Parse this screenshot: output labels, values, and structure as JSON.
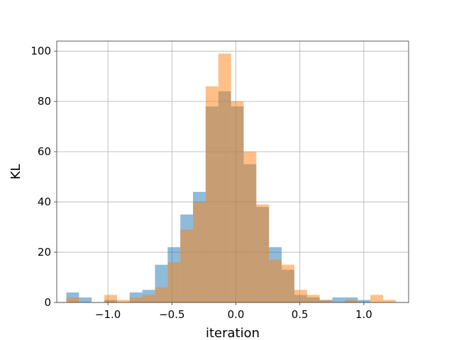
{
  "chart_data": {
    "type": "histogram",
    "xlabel": "iteration",
    "ylabel": "KL",
    "xlim": [
      -1.4,
      1.35
    ],
    "ylim": [
      0,
      104
    ],
    "grid": true,
    "x_ticks": [
      -1.0,
      -0.5,
      0.0,
      0.5,
      1.0
    ],
    "x_tick_labels": [
      "−1.0",
      "−0.5",
      "0.0",
      "0.5",
      "1.0"
    ],
    "y_ticks": [
      0,
      20,
      40,
      60,
      80,
      100
    ],
    "y_tick_labels": [
      "0",
      "20",
      "40",
      "60",
      "80",
      "100"
    ],
    "series": [
      {
        "color": "#1f77b4",
        "opacity": 0.5,
        "bins": [
          {
            "x0": -1.325,
            "x1": -1.226,
            "count": 4
          },
          {
            "x0": -1.226,
            "x1": -1.127,
            "count": 2
          },
          {
            "x0": -1.127,
            "x1": -1.028,
            "count": 0
          },
          {
            "x0": -1.028,
            "x1": -0.929,
            "count": 1
          },
          {
            "x0": -0.929,
            "x1": -0.83,
            "count": 0
          },
          {
            "x0": -0.83,
            "x1": -0.731,
            "count": 4
          },
          {
            "x0": -0.731,
            "x1": -0.632,
            "count": 5
          },
          {
            "x0": -0.632,
            "x1": -0.533,
            "count": 15
          },
          {
            "x0": -0.533,
            "x1": -0.434,
            "count": 22
          },
          {
            "x0": -0.434,
            "x1": -0.335,
            "count": 35
          },
          {
            "x0": -0.335,
            "x1": -0.236,
            "count": 44
          },
          {
            "x0": -0.236,
            "x1": -0.137,
            "count": 78
          },
          {
            "x0": -0.137,
            "x1": -0.038,
            "count": 84
          },
          {
            "x0": -0.038,
            "x1": 0.061,
            "count": 78
          },
          {
            "x0": 0.061,
            "x1": 0.16,
            "count": 55
          },
          {
            "x0": 0.16,
            "x1": 0.259,
            "count": 38
          },
          {
            "x0": 0.259,
            "x1": 0.358,
            "count": 22
          },
          {
            "x0": 0.358,
            "x1": 0.457,
            "count": 13
          },
          {
            "x0": 0.457,
            "x1": 0.556,
            "count": 3
          },
          {
            "x0": 0.556,
            "x1": 0.655,
            "count": 2
          },
          {
            "x0": 0.655,
            "x1": 0.754,
            "count": 1
          },
          {
            "x0": 0.754,
            "x1": 0.853,
            "count": 2
          },
          {
            "x0": 0.853,
            "x1": 0.952,
            "count": 2
          },
          {
            "x0": 0.952,
            "x1": 1.051,
            "count": 1
          }
        ]
      },
      {
        "color": "#ff7f0e",
        "opacity": 0.5,
        "bins": [
          {
            "x0": -1.325,
            "x1": -1.226,
            "count": 2
          },
          {
            "x0": -1.226,
            "x1": -1.127,
            "count": 0
          },
          {
            "x0": -1.127,
            "x1": -1.028,
            "count": 0
          },
          {
            "x0": -1.028,
            "x1": -0.929,
            "count": 3
          },
          {
            "x0": -0.929,
            "x1": -0.83,
            "count": 1
          },
          {
            "x0": -0.83,
            "x1": -0.731,
            "count": 2
          },
          {
            "x0": -0.731,
            "x1": -0.632,
            "count": 3
          },
          {
            "x0": -0.632,
            "x1": -0.533,
            "count": 6
          },
          {
            "x0": -0.533,
            "x1": -0.434,
            "count": 16
          },
          {
            "x0": -0.434,
            "x1": -0.335,
            "count": 29
          },
          {
            "x0": -0.335,
            "x1": -0.236,
            "count": 40
          },
          {
            "x0": -0.236,
            "x1": -0.137,
            "count": 86
          },
          {
            "x0": -0.137,
            "x1": -0.038,
            "count": 99
          },
          {
            "x0": -0.038,
            "x1": 0.061,
            "count": 80
          },
          {
            "x0": 0.061,
            "x1": 0.16,
            "count": 60
          },
          {
            "x0": 0.16,
            "x1": 0.259,
            "count": 39
          },
          {
            "x0": 0.259,
            "x1": 0.358,
            "count": 17
          },
          {
            "x0": 0.358,
            "x1": 0.457,
            "count": 15
          },
          {
            "x0": 0.457,
            "x1": 0.556,
            "count": 5
          },
          {
            "x0": 0.556,
            "x1": 0.655,
            "count": 3
          },
          {
            "x0": 0.655,
            "x1": 0.754,
            "count": 1
          },
          {
            "x0": 0.754,
            "x1": 0.853,
            "count": 0
          },
          {
            "x0": 0.853,
            "x1": 0.952,
            "count": 1
          },
          {
            "x0": 0.952,
            "x1": 1.051,
            "count": 0
          },
          {
            "x0": 1.051,
            "x1": 1.15,
            "count": 3
          },
          {
            "x0": 1.15,
            "x1": 1.249,
            "count": 1
          }
        ]
      }
    ]
  }
}
